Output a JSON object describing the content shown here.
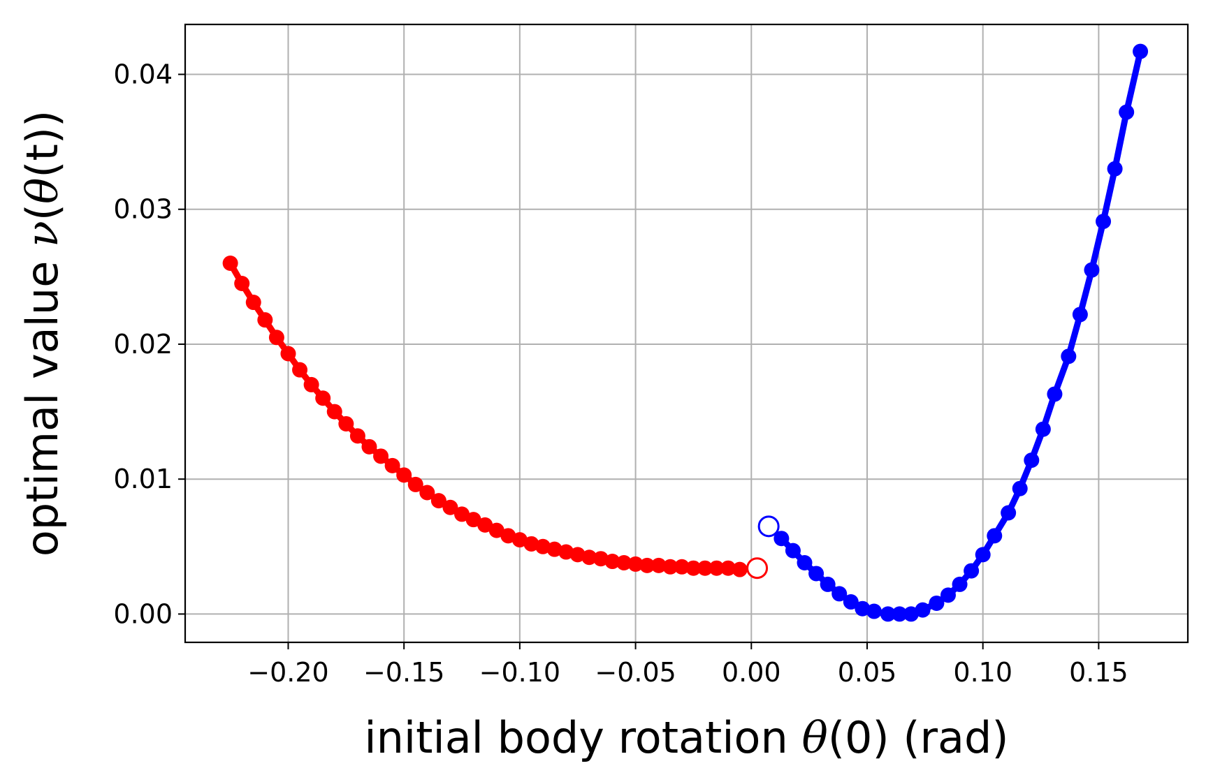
{
  "chart_data": {
    "type": "scatter",
    "title": "",
    "xlabel": "initial body rotation θ(0) (rad)",
    "ylabel": "optimal value ν(θ(t))",
    "xlim": [
      -0.2445,
      0.1885
    ],
    "ylim": [
      -0.0021,
      0.0437
    ],
    "grid": true,
    "x_ticks": [
      -0.2,
      -0.15,
      -0.1,
      -0.05,
      0.0,
      0.05,
      0.1,
      0.15
    ],
    "x_tick_labels": [
      "−0.20",
      "−0.15",
      "−0.10",
      "−0.05",
      "0.00",
      "0.05",
      "0.10",
      "0.15"
    ],
    "y_ticks": [
      0.0,
      0.01,
      0.02,
      0.03,
      0.04
    ],
    "y_tick_labels": [
      "0.00",
      "0.01",
      "0.02",
      "0.03",
      "0.04"
    ],
    "series": [
      {
        "color": "#ff0000",
        "marker": "filled-circle",
        "x": [
          -0.225,
          -0.22,
          -0.215,
          -0.21,
          -0.205,
          -0.2,
          -0.195,
          -0.19,
          -0.185,
          -0.18,
          -0.175,
          -0.17,
          -0.165,
          -0.16,
          -0.155,
          -0.15,
          -0.145,
          -0.14,
          -0.135,
          -0.13,
          -0.125,
          -0.12,
          -0.115,
          -0.11,
          -0.105,
          -0.1,
          -0.095,
          -0.09,
          -0.085,
          -0.08,
          -0.075,
          -0.07,
          -0.065,
          -0.06,
          -0.055,
          -0.05,
          -0.045,
          -0.04,
          -0.035,
          -0.03,
          -0.025,
          -0.02,
          -0.015,
          -0.01,
          -0.005
        ],
        "y": [
          0.026,
          0.0245,
          0.0231,
          0.0218,
          0.0205,
          0.0193,
          0.0181,
          0.017,
          0.016,
          0.015,
          0.0141,
          0.0132,
          0.0124,
          0.0117,
          0.011,
          0.0103,
          0.0096,
          0.009,
          0.0084,
          0.0079,
          0.0074,
          0.007,
          0.0066,
          0.0062,
          0.0058,
          0.0055,
          0.0052,
          0.005,
          0.0048,
          0.0046,
          0.0044,
          0.0042,
          0.0041,
          0.0039,
          0.0038,
          0.0037,
          0.0036,
          0.0036,
          0.0035,
          0.0035,
          0.0034,
          0.0034,
          0.0034,
          0.0034,
          0.0033
        ]
      },
      {
        "color": "#0000ff",
        "marker": "filled-circle",
        "x": [
          0.013,
          0.018,
          0.023,
          0.028,
          0.033,
          0.038,
          0.043,
          0.048,
          0.053,
          0.059,
          0.064,
          0.069,
          0.074,
          0.08,
          0.085,
          0.09,
          0.095,
          0.1,
          0.105,
          0.111,
          0.116,
          0.121,
          0.126,
          0.131,
          0.137,
          0.142,
          0.147,
          0.152,
          0.157,
          0.162,
          0.168
        ],
        "y": [
          0.0056,
          0.0047,
          0.0038,
          0.003,
          0.0022,
          0.0015,
          0.0009,
          0.0004,
          0.0002,
          0.0,
          0.0,
          0.0,
          0.0003,
          0.0008,
          0.0014,
          0.0022,
          0.0032,
          0.0044,
          0.0058,
          0.0075,
          0.0093,
          0.0114,
          0.0137,
          0.0163,
          0.0191,
          0.0222,
          0.0255,
          0.0291,
          0.033,
          0.0372,
          0.0417
        ]
      }
    ],
    "open_markers": [
      {
        "color": "#ff0000",
        "x": 0.0025,
        "y": 0.0034
      },
      {
        "color": "#0000ff",
        "x": 0.0075,
        "y": 0.0065
      }
    ]
  }
}
